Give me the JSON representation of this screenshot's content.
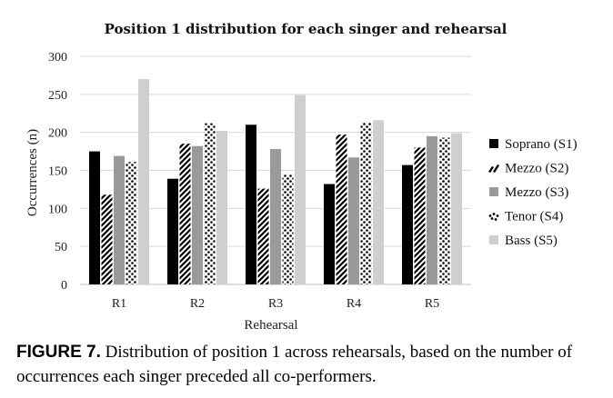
{
  "chart_data": {
    "type": "bar",
    "title": "Position 1 distribution for each singer and rehearsal",
    "xlabel": "Rehearsal",
    "ylabel": "Occurrences (n)",
    "ylim": [
      0,
      300
    ],
    "yticks": [
      0,
      50,
      100,
      150,
      200,
      250,
      300
    ],
    "grid": "horizontal",
    "legend_position": "right",
    "categories": [
      "R1",
      "R2",
      "R3",
      "R4",
      "R5"
    ],
    "series": [
      {
        "name": "Soprano (S1)",
        "pattern": "solid-black",
        "values": [
          175,
          139,
          210,
          132,
          157
        ]
      },
      {
        "name": "Mezzo (S2)",
        "pattern": "diagonal-stripes",
        "values": [
          118,
          185,
          126,
          197,
          180
        ]
      },
      {
        "name": "Mezzo (S3)",
        "pattern": "solid-gray",
        "values": [
          169,
          182,
          178,
          167,
          195
        ]
      },
      {
        "name": "Tenor (S4)",
        "pattern": "dots",
        "values": [
          161,
          212,
          145,
          213,
          193
        ]
      },
      {
        "name": "Bass (S5)",
        "pattern": "solid-light-gray",
        "values": [
          270,
          202,
          249,
          216,
          199
        ]
      }
    ],
    "colors": {
      "soprano": "#000000",
      "mezzo_s3": "#9a9a9a",
      "bass": "#cfcfcf",
      "gridline": "#d9d9d9"
    }
  },
  "caption": {
    "label": "FIGURE 7.",
    "text": "Distribution of position 1 across rehearsals, based on the number of occurrences each singer preceded all co-performers."
  }
}
